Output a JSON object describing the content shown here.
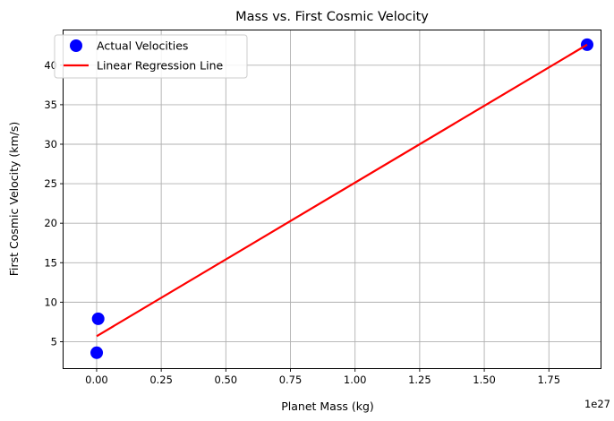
{
  "chart_data": {
    "type": "scatter",
    "title": "Mass vs. First Cosmic Velocity",
    "xlabel": "Planet Mass (kg)",
    "ylabel": "First Cosmic Velocity (km/s)",
    "x_offset_label": "1e27",
    "xlim": [
      -0.128,
      1.95
    ],
    "ylim": [
      1.65,
      44.4
    ],
    "x_ticks": [
      0.0,
      0.25,
      0.5,
      0.75,
      1.0,
      1.25,
      1.5,
      1.75
    ],
    "x_tick_labels": [
      "0.00",
      "0.25",
      "0.50",
      "0.75",
      "1.00",
      "1.25",
      "1.50",
      "1.75"
    ],
    "y_ticks": [
      5,
      10,
      15,
      20,
      25,
      30,
      35,
      40
    ],
    "y_tick_labels": [
      "5",
      "10",
      "15",
      "20",
      "25",
      "30",
      "35",
      "40"
    ],
    "grid": true,
    "legend_position": "top-left",
    "series": [
      {
        "name": "Actual Velocities",
        "kind": "scatter",
        "color": "#0000ff",
        "x": [
          0.0003,
          0.006,
          1.898
        ],
        "y": [
          3.6,
          7.9,
          42.6
        ]
      },
      {
        "name": "Linear Regression Line",
        "kind": "line",
        "color": "#ff0000",
        "x": [
          0.0003,
          1.898
        ],
        "y": [
          5.7,
          42.6
        ]
      }
    ]
  }
}
